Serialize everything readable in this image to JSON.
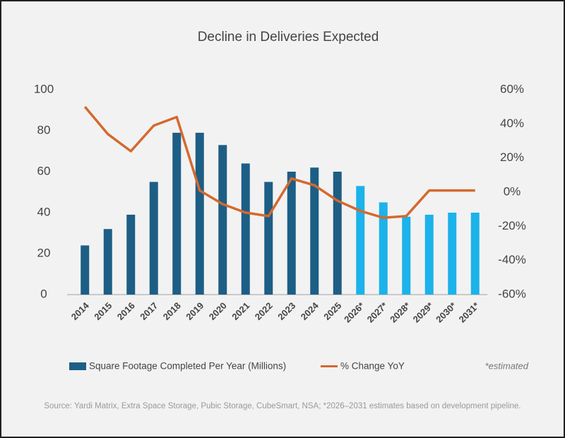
{
  "chart_data": {
    "type": "bar_line",
    "title": "Decline in Deliveries Expected",
    "categories": [
      "2014",
      "2015",
      "2016",
      "2017",
      "2018",
      "2019",
      "2020",
      "2021",
      "2022",
      "2023",
      "2024",
      "2025",
      "2026*",
      "2027*",
      "2028*",
      "2029*",
      "2030*",
      "2031*"
    ],
    "series": [
      {
        "name": "Square Footage Completed Per Year (Millions)",
        "type": "bar",
        "color": "#1d5e85",
        "colors": [
          "#1d5e85",
          "#1d5e85",
          "#1d5e85",
          "#1d5e85",
          "#1d5e85",
          "#1d5e85",
          "#1d5e85",
          "#1d5e85",
          "#1d5e85",
          "#1d5e85",
          "#1d5e85",
          "#1d5e85",
          "#1cb2ea",
          "#1cb2ea",
          "#1cb2ea",
          "#1cb2ea",
          "#1cb2ea",
          "#1cb2ea"
        ],
        "values": [
          24,
          32,
          39,
          55,
          79,
          79,
          73,
          64,
          55,
          60,
          62,
          60,
          53,
          45,
          38,
          39,
          40,
          40
        ]
      },
      {
        "name": "% Change YoY",
        "type": "line",
        "axis": "y2",
        "color": "#d4692e",
        "values": [
          50,
          34,
          24,
          39,
          44,
          1,
          -7,
          -12,
          -14,
          8,
          4,
          -5,
          -11,
          -15,
          -14,
          1,
          1,
          1
        ]
      }
    ],
    "ylim": [
      0,
      100
    ],
    "yticks": [
      0,
      20,
      40,
      60,
      80,
      100
    ],
    "y2lim": [
      -60,
      60
    ],
    "y2ticks": [
      {
        "value": -60,
        "label": "-60%"
      },
      {
        "value": -40,
        "label": "-40%"
      },
      {
        "value": -20,
        "label": "-20%"
      },
      {
        "value": 0,
        "label": "0%"
      },
      {
        "value": 20,
        "label": "20%"
      },
      {
        "value": 40,
        "label": "40%"
      },
      {
        "value": 60,
        "label": "60%"
      }
    ],
    "annotation": "*estimated",
    "source": "Source: Yardi Matrix, Extra Space Storage, Pubic Storage, CubeSmart, NSA; *2026–2031 estimates based on development pipeline."
  }
}
